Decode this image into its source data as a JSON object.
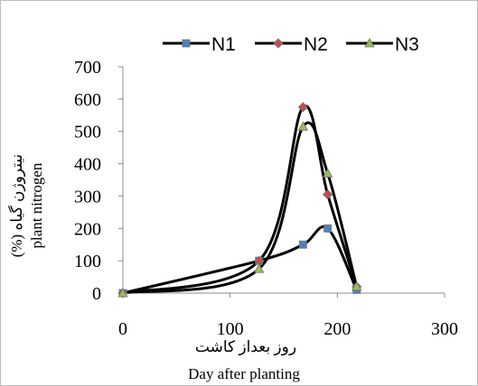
{
  "chart_data": {
    "type": "line",
    "x_axis": {
      "min": 0,
      "max": 300,
      "ticks": [
        0,
        100,
        200,
        300
      ]
    },
    "y_axis": {
      "min": 0,
      "max": 700,
      "ticks": [
        0,
        100,
        200,
        300,
        400,
        500,
        600,
        700
      ]
    },
    "xlabel_fa": "روز بعداز کاشت",
    "xlabel_en": "Day after planting",
    "ylabel_fa": "نیتروژن گیاه (%)",
    "ylabel_en": "plant nitrogen",
    "legend_position": "top",
    "grid": false,
    "series": [
      {
        "name": "N1",
        "marker": "square",
        "marker_color": "#4f81bd",
        "x": [
          0,
          127,
          168,
          191,
          218
        ],
        "y": [
          0,
          100,
          150,
          200,
          10
        ]
      },
      {
        "name": "N2",
        "marker": "diamond",
        "marker_color": "#c0504d",
        "x": [
          0,
          127,
          168,
          191,
          218
        ],
        "y": [
          0,
          100,
          575,
          305,
          20
        ]
      },
      {
        "name": "N3",
        "marker": "triangle",
        "marker_color": "#9bbb59",
        "x": [
          0,
          127,
          168,
          191,
          218
        ],
        "y": [
          0,
          75,
          515,
          370,
          20
        ]
      }
    ]
  }
}
